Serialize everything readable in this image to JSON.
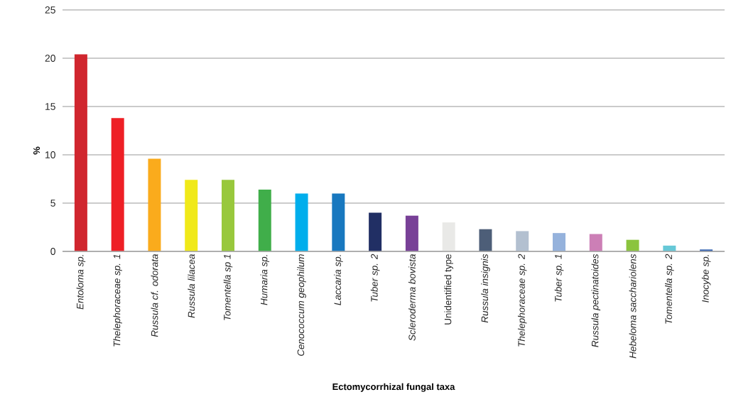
{
  "chart_data": {
    "type": "bar",
    "xlabel": "Ectomycorrhizal fungal taxa",
    "ylabel": "%",
    "categories": [
      "*Entoloma sp.*",
      "*Thelephoraceae sp. 1*",
      "*Russula cf. odorata*",
      "*Russula lilacea*",
      "*Tomentella sp 1*",
      "*Humaria sp.*",
      "*Cenococcum geophilum*",
      "*Laccaria sp.*",
      "*Tuber sp. 2*",
      "*Scleroderma bovista*",
      "Unidentified type",
      "*Russula insignis*",
      "*Thelephoraceae sp. 2*",
      "*Tuber sp. 1*",
      "*Russula pectinatoides*",
      "*Hebeloma sacchariolens*",
      "*Tomentella sp. 2*",
      "*Inocybe sp.*"
    ],
    "values": [
      20.4,
      13.8,
      9.6,
      7.4,
      7.4,
      6.4,
      6.0,
      6.0,
      4.0,
      3.7,
      3.0,
      2.3,
      2.1,
      1.9,
      1.8,
      1.2,
      0.6,
      0.2
    ],
    "colors": [
      "#d0262e",
      "#ee1f25",
      "#faab1c",
      "#f0e919",
      "#98c83c",
      "#40ae4a",
      "#00aeec",
      "#1878bf",
      "#212f64",
      "#784097",
      "#e9e9e7",
      "#4d5e78",
      "#b3c0d0",
      "#95b2dc",
      "#cc7fb6",
      "#8bc43e",
      "#66c8d7",
      "#3966b2"
    ],
    "ylim": [
      0,
      25
    ],
    "yticks": [
      0,
      5,
      10,
      15,
      20,
      25
    ],
    "grid": "y"
  }
}
